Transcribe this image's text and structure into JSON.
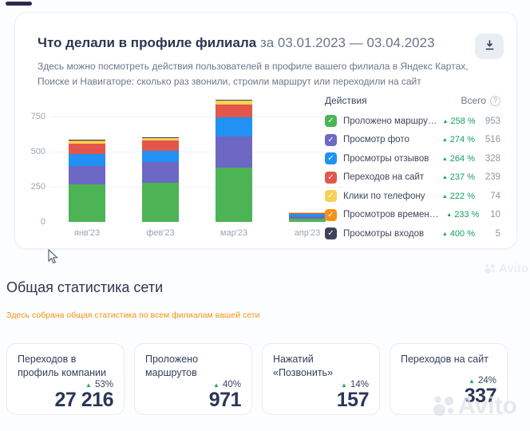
{
  "report_card": {
    "title": "Что делали в профиле филиала",
    "period": "за 03.01.2023 — 03.04.2023",
    "description": "Здесь можно посмотреть действия пользователей в профиле вашего филиала в Яндекс Картах, Поиске и Навигаторе: сколько раз звонили, строили маршрут или переходили на сайт",
    "legend": {
      "col_actions": "Действия",
      "col_total": "Всего",
      "help_glyph": "?",
      "items": [
        {
          "label": "Проложено маршрутов",
          "color": "#4cb454",
          "percent": "258 %",
          "value": "953"
        },
        {
          "label": "Просмотр фото",
          "color": "#6c68c4",
          "percent": "274 %",
          "value": "516"
        },
        {
          "label": "Просмотры отзывов",
          "color": "#2191f4",
          "percent": "264 %",
          "value": "328"
        },
        {
          "label": "Переходов на сайт",
          "color": "#e2564b",
          "percent": "237 %",
          "value": "239"
        },
        {
          "label": "Клики по телефону",
          "color": "#f7d155",
          "percent": "222 %",
          "value": "74"
        },
        {
          "label": "Просмотров времени работы",
          "color": "#f5921e",
          "percent": "233 %",
          "value": "10"
        },
        {
          "label": "Просмотры входов",
          "color": "#3e4358",
          "percent": "400 %",
          "value": "5"
        }
      ]
    }
  },
  "chart_data": {
    "type": "bar",
    "stacked": true,
    "title": "Что делали в профиле филиала",
    "categories": [
      "янв'23",
      "фев'23",
      "мар'23",
      "апр'23"
    ],
    "series": [
      {
        "name": "Проложено маршрутов",
        "color": "#4cb454",
        "values": [
          265,
          280,
          388,
          20
        ]
      },
      {
        "name": "Просмотр фото",
        "color": "#6c68c4",
        "values": [
          130,
          145,
          220,
          21
        ]
      },
      {
        "name": "Просмотры отзывов",
        "color": "#2191f4",
        "values": [
          90,
          82,
          136,
          20
        ]
      },
      {
        "name": "Переходов на сайт",
        "color": "#e2564b",
        "values": [
          70,
          75,
          90,
          4
        ]
      },
      {
        "name": "Клики по телефону",
        "color": "#f7d155",
        "values": [
          25,
          14,
          34,
          1
        ]
      },
      {
        "name": "Просмотров времени работы",
        "color": "#f5921e",
        "values": [
          2,
          6,
          2,
          0
        ]
      },
      {
        "name": "Просмотры входов",
        "color": "#3e4358",
        "values": [
          1,
          3,
          1,
          0
        ]
      }
    ],
    "yticks": [
      0,
      250,
      500,
      750
    ],
    "ylim": [
      0,
      900
    ],
    "grid": true,
    "legend_position": "right"
  },
  "network": {
    "title": "Общая статистика сети",
    "link": "Здесь собрана общая статистика по всем филиалам вашей сети",
    "cards": [
      {
        "title": "Переходов в профиль компании",
        "percent": "53%",
        "value": "27 216"
      },
      {
        "title": "Проложено маршрутов",
        "percent": "40%",
        "value": "971"
      },
      {
        "title": "Нажатий «Позвонить»",
        "percent": "14%",
        "value": "157"
      },
      {
        "title": "Переходов на сайт",
        "percent": "24%",
        "value": "337"
      }
    ]
  },
  "watermark": {
    "text": "Avito"
  },
  "colors": {
    "trend_green": "#12a15c",
    "accent_orange": "#f6930f",
    "heading_navy": "#2c3550"
  }
}
